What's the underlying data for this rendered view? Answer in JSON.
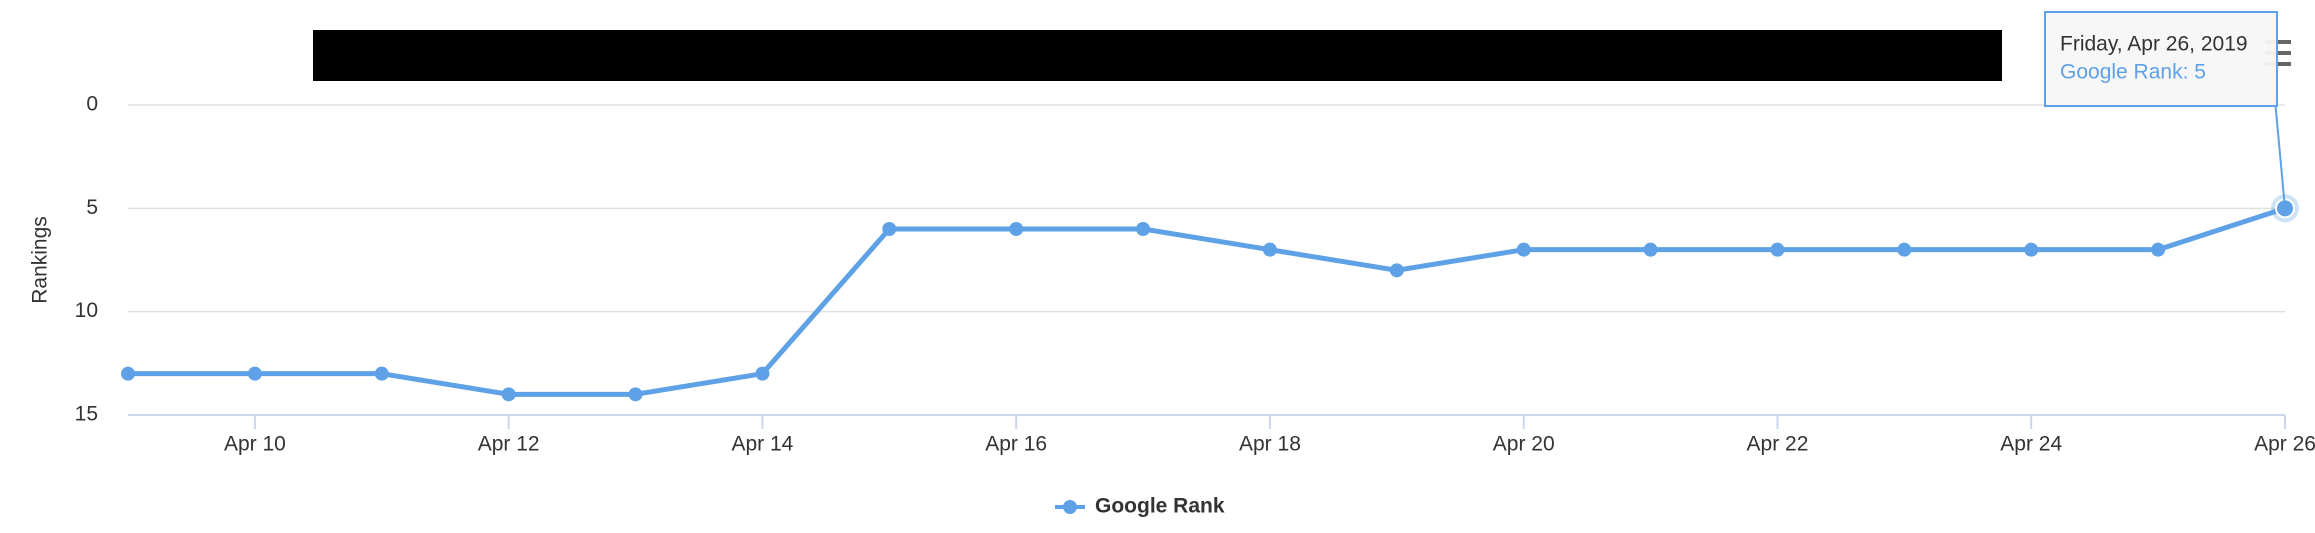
{
  "chart_data": {
    "type": "line",
    "y_label": "Rankings",
    "categories": [
      null,
      "Apr 10",
      null,
      "Apr 12",
      null,
      "Apr 14",
      null,
      "Apr 16",
      null,
      "Apr 18",
      null,
      "Apr 20",
      null,
      "Apr 22",
      null,
      "Apr 24",
      null,
      "Apr 26"
    ],
    "series": [
      {
        "name": "Google Rank",
        "color": "#5ea1e6",
        "values": [
          13,
          13,
          13,
          14,
          14,
          13,
          6,
          6,
          6,
          7,
          8,
          7,
          7,
          7,
          7,
          7,
          7,
          5
        ]
      }
    ],
    "ylim": [
      0,
      15
    ],
    "y_reversed": true,
    "yticks": [
      0,
      5,
      10,
      15
    ],
    "grid": true,
    "legend": "bottom",
    "tooltip": {
      "title": "Friday, Apr 26, 2019",
      "text": "Google Rank: 5"
    }
  }
}
